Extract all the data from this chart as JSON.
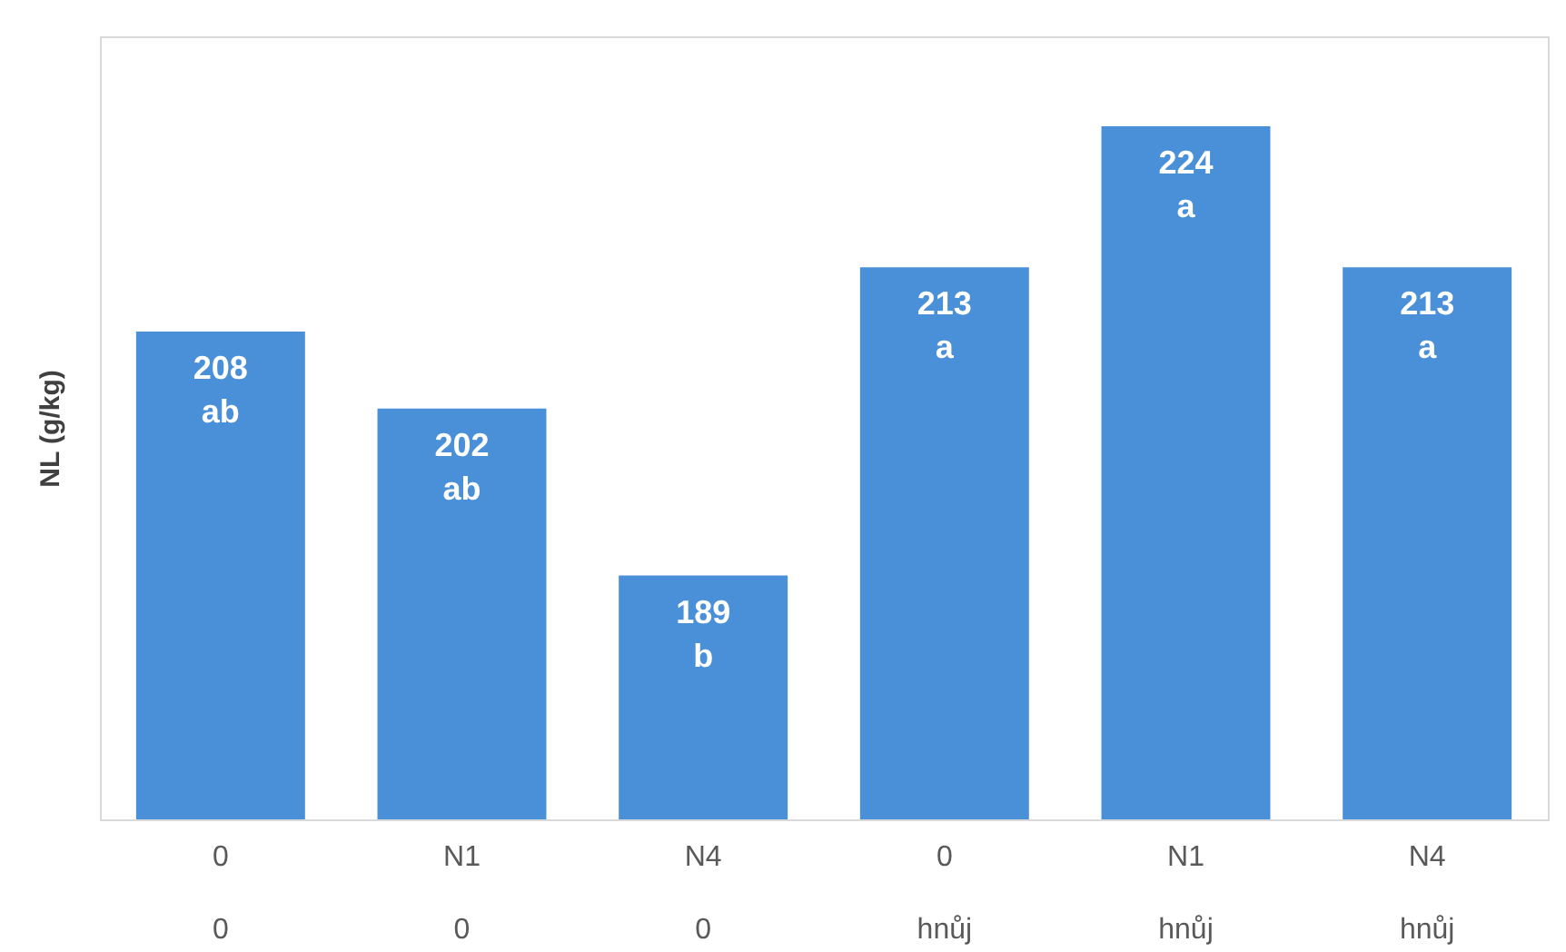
{
  "chart_data": {
    "type": "bar",
    "ylabel": "NL (g/kg)",
    "categories": [
      "0\n0",
      "N1\n0",
      "N4\n0",
      "0\nhnůj",
      "N1\nhnůj",
      "N4\nhnůj"
    ],
    "values": [
      208,
      202,
      189,
      213,
      224,
      213
    ],
    "value_labels": [
      "208\nab",
      "202\nab",
      "189\nb",
      "213\na",
      "224\na",
      "213\na"
    ],
    "color": "#4a90d9",
    "ylim": [
      170,
      231
    ],
    "grid": false
  }
}
